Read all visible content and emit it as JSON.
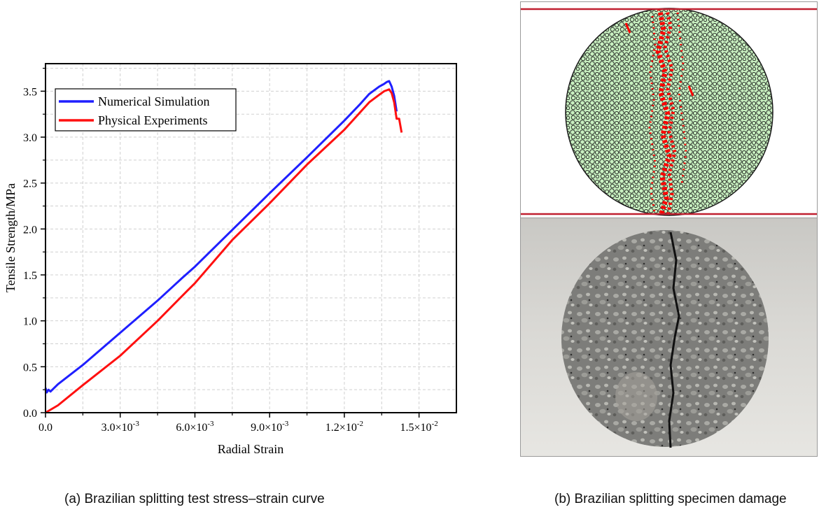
{
  "chart_data": {
    "type": "line",
    "xlabel": "Radial Strain",
    "ylabel": "Tensile Strength/MPa",
    "xlim": [
      0,
      0.0165
    ],
    "ylim": [
      0,
      3.8
    ],
    "x_ticks": [
      0,
      0.003,
      0.006,
      0.009,
      0.012,
      0.015
    ],
    "x_tick_labels": [
      {
        "mant": "0.0",
        "exp": ""
      },
      {
        "mant": "3.0×10",
        "exp": "-3"
      },
      {
        "mant": "6.0×10",
        "exp": "-3"
      },
      {
        "mant": "9.0×10",
        "exp": "-3"
      },
      {
        "mant": "1.2×10",
        "exp": "-2"
      },
      {
        "mant": "1.5×10",
        "exp": "-2"
      }
    ],
    "y_ticks": [
      0.0,
      0.5,
      1.0,
      1.5,
      2.0,
      2.5,
      3.0,
      3.5
    ],
    "y_tick_labels": [
      "0.0",
      "0.5",
      "1.0",
      "1.5",
      "2.0",
      "2.5",
      "3.0",
      "3.5"
    ],
    "grid": true,
    "legend_position": "top-left",
    "series": [
      {
        "name": "Numerical Simulation",
        "color": "#1f1fff",
        "x": [
          0.0,
          5e-05,
          0.00012,
          0.0002,
          0.0005,
          0.0015,
          0.003,
          0.0045,
          0.0055,
          0.006,
          0.0075,
          0.009,
          0.0105,
          0.012,
          0.0126,
          0.013,
          0.0134,
          0.0136,
          0.0137,
          0.0138,
          0.0139,
          0.014,
          0.0141
        ],
        "y": [
          0.27,
          0.22,
          0.25,
          0.23,
          0.31,
          0.52,
          0.87,
          1.22,
          1.47,
          1.59,
          1.99,
          2.39,
          2.78,
          3.18,
          3.35,
          3.47,
          3.55,
          3.58,
          3.6,
          3.61,
          3.55,
          3.45,
          3.28
        ]
      },
      {
        "name": "Physical Experiments",
        "color": "#ff1010",
        "x": [
          0.0,
          0.0005,
          0.0015,
          0.003,
          0.0045,
          0.0057,
          0.006,
          0.0075,
          0.009,
          0.0105,
          0.012,
          0.0126,
          0.013,
          0.0134,
          0.0136,
          0.0137,
          0.0138,
          0.0139,
          0.014,
          0.0141,
          0.0142,
          0.0143
        ],
        "y": [
          0.0,
          0.08,
          0.3,
          0.62,
          1.0,
          1.33,
          1.41,
          1.88,
          2.28,
          2.7,
          3.08,
          3.26,
          3.38,
          3.46,
          3.5,
          3.51,
          3.52,
          3.48,
          3.38,
          3.2,
          3.2,
          3.05
        ]
      }
    ]
  },
  "captions": {
    "a": "(a) Brazilian splitting test stress–strain curve",
    "b": "(b) Brazilian splitting specimen damage"
  },
  "colors": {
    "frame": "#000000",
    "grid": "#d0d0d0",
    "platen": "#c02030",
    "particles": "#c8f0c0",
    "crack": "#ff0000"
  }
}
